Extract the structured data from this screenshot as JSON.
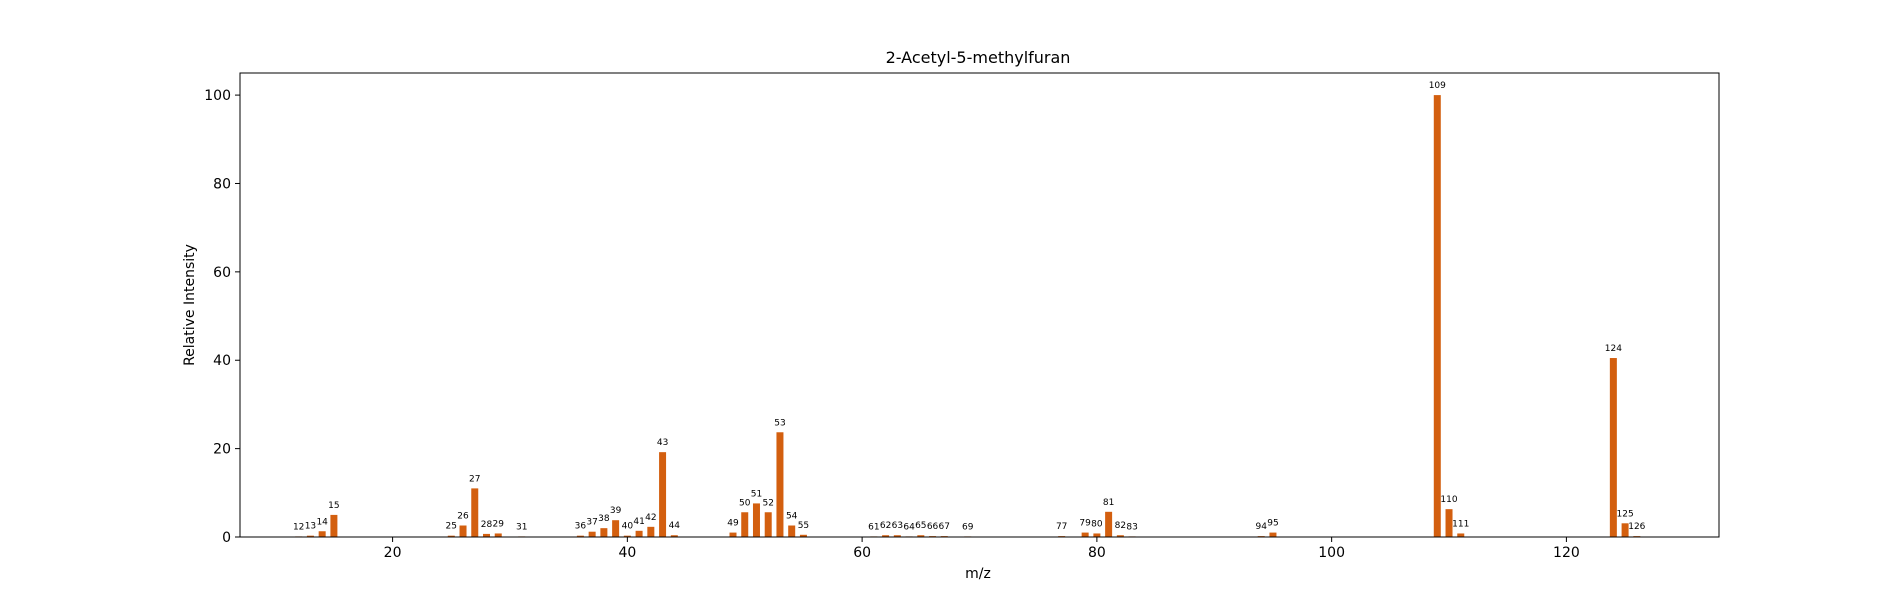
{
  "chart_data": {
    "type": "bar",
    "title": "2-Acetyl-5-methylfuran",
    "xlabel": "m/z",
    "ylabel": "Relative Intensity",
    "xlim": [
      7,
      133
    ],
    "ylim": [
      0,
      105
    ],
    "xticks": [
      20,
      40,
      60,
      80,
      100,
      120
    ],
    "yticks": [
      0,
      20,
      40,
      60,
      80,
      100
    ],
    "bar_color": "#d35f0f",
    "grid": false,
    "legend": "none",
    "x": [
      12,
      13,
      14,
      15,
      25,
      26,
      27,
      28,
      29,
      31,
      36,
      37,
      38,
      39,
      40,
      41,
      42,
      43,
      44,
      49,
      50,
      51,
      52,
      53,
      54,
      55,
      61,
      62,
      63,
      64,
      65,
      66,
      67,
      69,
      77,
      79,
      80,
      81,
      82,
      83,
      94,
      95,
      109,
      110,
      111,
      124,
      125,
      126
    ],
    "values": [
      0.1,
      0.3,
      1.3,
      5.0,
      0.3,
      2.6,
      11.0,
      0.7,
      0.8,
      0.1,
      0.3,
      1.2,
      2.0,
      3.8,
      0.3,
      1.4,
      2.3,
      19.2,
      0.4,
      1.0,
      5.6,
      7.6,
      5.6,
      23.7,
      2.6,
      0.5,
      0.1,
      0.4,
      0.4,
      0.1,
      0.4,
      0.2,
      0.2,
      0.05,
      0.2,
      1.0,
      0.8,
      5.7,
      0.4,
      0.1,
      0.2,
      1.0,
      100.0,
      6.3,
      0.8,
      40.5,
      3.1,
      0.2
    ]
  }
}
